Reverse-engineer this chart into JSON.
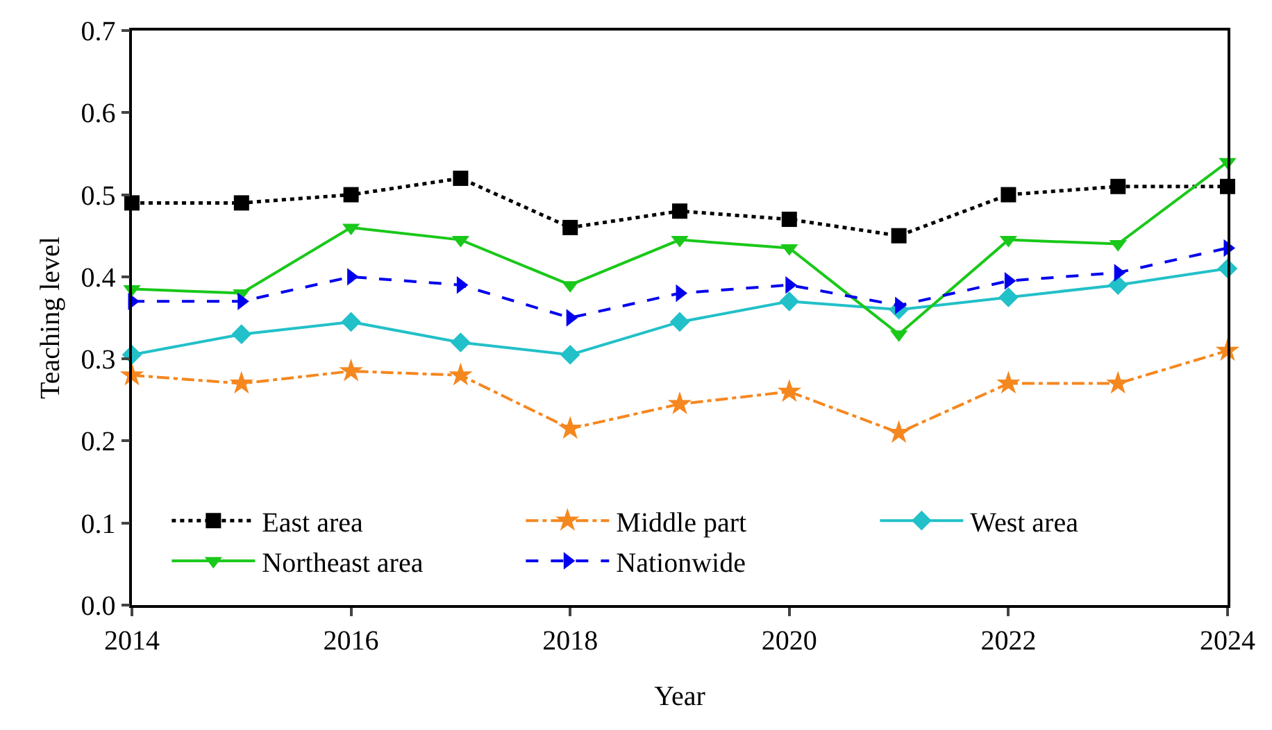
{
  "chart_data": {
    "type": "line",
    "xlabel": "Year",
    "ylabel": "Teaching level",
    "x": [
      2014,
      2015,
      2016,
      2017,
      2018,
      2019,
      2020,
      2021,
      2022,
      2023,
      2024
    ],
    "xlim": [
      2014,
      2024
    ],
    "xticks": [
      2014,
      2016,
      2018,
      2020,
      2022,
      2024
    ],
    "ylim": [
      0,
      0.7
    ],
    "yticks": [
      {
        "value": 0,
        "label": "0.0"
      },
      0.1,
      0.2,
      0.3,
      0.4,
      0.5,
      0.6,
      0.7
    ],
    "grid": false,
    "legend": "bottom left",
    "series": [
      {
        "name": "East area",
        "color": "#000000",
        "marker": "square",
        "line_style": "dotted",
        "values": [
          0.49,
          0.49,
          0.5,
          0.52,
          0.46,
          0.48,
          0.47,
          0.45,
          0.5,
          0.51,
          0.51
        ]
      },
      {
        "name": "Middle part",
        "color": "#f5871f",
        "marker": "star",
        "line_style": "dashdot",
        "values": [
          0.28,
          0.27,
          0.285,
          0.28,
          0.215,
          0.245,
          0.26,
          0.21,
          0.27,
          0.27,
          0.31
        ]
      },
      {
        "name": "West area",
        "color": "#22c0c8",
        "marker": "diamond",
        "line_style": "solid",
        "values": [
          0.305,
          0.33,
          0.345,
          0.32,
          0.305,
          0.345,
          0.37,
          0.36,
          0.375,
          0.39,
          0.41
        ]
      },
      {
        "name": "Northeast area",
        "color": "#19c819",
        "marker": "triangle-down",
        "line_style": "solid",
        "values": [
          0.385,
          0.38,
          0.46,
          0.445,
          0.39,
          0.445,
          0.435,
          0.33,
          0.445,
          0.44,
          0.54
        ]
      },
      {
        "name": "Nationwide",
        "color": "#0000ee",
        "marker": "triangle-right",
        "line_style": "dashed",
        "values": [
          0.37,
          0.37,
          0.4,
          0.39,
          0.35,
          0.38,
          0.39,
          0.365,
          0.395,
          0.405,
          0.435
        ]
      }
    ]
  }
}
